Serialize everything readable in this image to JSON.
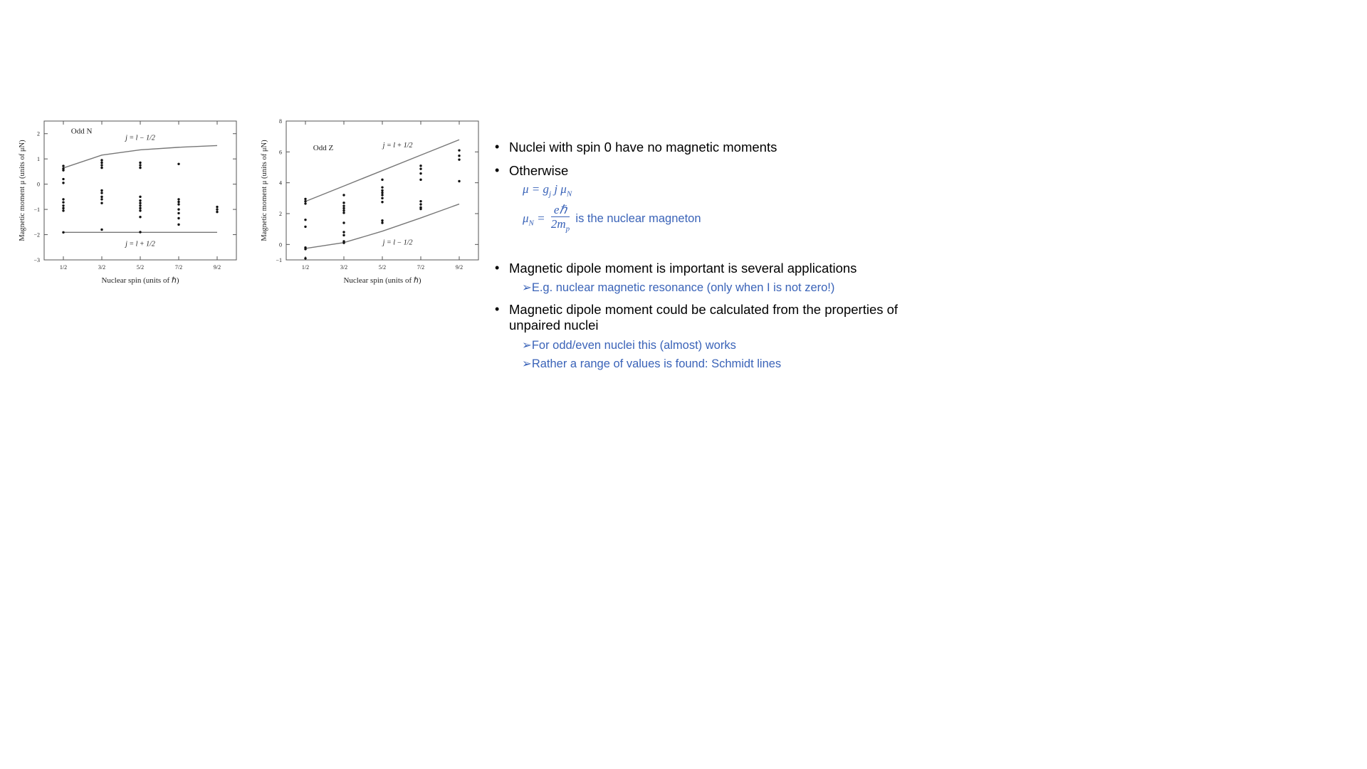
{
  "chart_data": [
    {
      "type": "scatter",
      "title": "",
      "xlabel": "Nuclear spin (units of ℏ)",
      "ylabel": "Magnetic moment μ (units of μN)",
      "inset_label": "Odd N",
      "x_ticks": [
        "1/2",
        "3/2",
        "5/2",
        "7/2",
        "9/2"
      ],
      "y_ticks": [
        -3,
        -2,
        -1,
        0,
        1,
        2
      ],
      "xlim": [
        0,
        5
      ],
      "ylim": [
        -3,
        2.5
      ],
      "lines": [
        {
          "name": "j = l − 1/2",
          "x": [
            0.5,
            1.5,
            2.5,
            3.5,
            4.5
          ],
          "y": [
            0.64,
            1.15,
            1.36,
            1.46,
            1.53
          ]
        },
        {
          "name": "j = l + 1/2",
          "x": [
            0.5,
            4.5
          ],
          "y": [
            -1.91,
            -1.91
          ]
        }
      ],
      "points": [
        [
          0.5,
          0.72
        ],
        [
          0.5,
          0.62
        ],
        [
          0.5,
          0.55
        ],
        [
          0.5,
          0.2
        ],
        [
          0.5,
          0.05
        ],
        [
          0.5,
          -0.6
        ],
        [
          0.5,
          -0.72
        ],
        [
          0.5,
          -0.85
        ],
        [
          0.5,
          -0.95
        ],
        [
          0.5,
          -1.05
        ],
        [
          0.5,
          -1.91
        ],
        [
          1.5,
          0.95
        ],
        [
          1.5,
          0.85
        ],
        [
          1.5,
          0.75
        ],
        [
          1.5,
          0.65
        ],
        [
          1.5,
          -0.25
        ],
        [
          1.5,
          -0.35
        ],
        [
          1.5,
          -0.5
        ],
        [
          1.5,
          -0.6
        ],
        [
          1.5,
          -0.75
        ],
        [
          1.5,
          -1.8
        ],
        [
          2.5,
          0.85
        ],
        [
          2.5,
          0.75
        ],
        [
          2.5,
          0.65
        ],
        [
          2.5,
          -0.5
        ],
        [
          2.5,
          -0.65
        ],
        [
          2.5,
          -0.75
        ],
        [
          2.5,
          -0.85
        ],
        [
          2.5,
          -0.95
        ],
        [
          2.5,
          -1.05
        ],
        [
          2.5,
          -1.3
        ],
        [
          2.5,
          -1.9
        ],
        [
          3.5,
          0.8
        ],
        [
          3.5,
          -0.6
        ],
        [
          3.5,
          -0.7
        ],
        [
          3.5,
          -0.8
        ],
        [
          3.5,
          -1.0
        ],
        [
          3.5,
          -1.15
        ],
        [
          3.5,
          -1.35
        ],
        [
          3.5,
          -1.6
        ],
        [
          4.5,
          -0.9
        ],
        [
          4.5,
          -1.0
        ],
        [
          4.5,
          -1.1
        ]
      ]
    },
    {
      "type": "scatter",
      "title": "",
      "xlabel": "Nuclear spin (units of ℏ)",
      "ylabel": "Magnetic moment μ (units of μN)",
      "inset_label": "Odd Z",
      "x_ticks": [
        "1/2",
        "3/2",
        "5/2",
        "7/2",
        "9/2"
      ],
      "y_ticks": [
        -1,
        0,
        2,
        4,
        6,
        8
      ],
      "xlim": [
        0,
        5
      ],
      "ylim": [
        -1,
        8
      ],
      "lines": [
        {
          "name": "j = l + 1/2",
          "x": [
            0.5,
            1.5,
            2.5,
            3.5,
            4.5
          ],
          "y": [
            2.79,
            3.79,
            4.79,
            5.79,
            6.79
          ]
        },
        {
          "name": "j = l − 1/2",
          "x": [
            0.5,
            1.5,
            2.5,
            3.5,
            4.5
          ],
          "y": [
            -0.26,
            0.12,
            0.86,
            1.72,
            2.62
          ]
        }
      ],
      "points": [
        [
          0.5,
          2.95
        ],
        [
          0.5,
          2.8
        ],
        [
          0.5,
          2.65
        ],
        [
          0.5,
          1.6
        ],
        [
          0.5,
          1.15
        ],
        [
          0.5,
          -0.2
        ],
        [
          0.5,
          -0.3
        ],
        [
          0.5,
          -0.9
        ],
        [
          1.5,
          3.2
        ],
        [
          1.5,
          2.7
        ],
        [
          1.5,
          2.5
        ],
        [
          1.5,
          2.35
        ],
        [
          1.5,
          2.2
        ],
        [
          1.5,
          2.05
        ],
        [
          1.5,
          1.4
        ],
        [
          1.5,
          0.8
        ],
        [
          1.5,
          0.6
        ],
        [
          1.5,
          0.2
        ],
        [
          1.5,
          0.1
        ],
        [
          2.5,
          4.2
        ],
        [
          2.5,
          3.7
        ],
        [
          2.5,
          3.5
        ],
        [
          2.5,
          3.35
        ],
        [
          2.5,
          3.2
        ],
        [
          2.5,
          3.0
        ],
        [
          2.5,
          2.75
        ],
        [
          2.5,
          1.55
        ],
        [
          2.5,
          1.4
        ],
        [
          3.5,
          5.1
        ],
        [
          3.5,
          4.9
        ],
        [
          3.5,
          4.6
        ],
        [
          3.5,
          4.2
        ],
        [
          3.5,
          2.8
        ],
        [
          3.5,
          2.6
        ],
        [
          3.5,
          2.4
        ],
        [
          3.5,
          2.3
        ],
        [
          4.5,
          6.1
        ],
        [
          4.5,
          5.75
        ],
        [
          4.5,
          5.5
        ],
        [
          4.5,
          4.1
        ]
      ]
    }
  ],
  "bullets": [
    {
      "text": "Nuclei with spin 0 have no magnetic moments"
    },
    {
      "text": "Otherwise"
    },
    {
      "text": "Magnetic dipole moment is important is several applications"
    },
    {
      "text": "Magnetic dipole moment could be calculated from the properties of unpaired nuclei"
    }
  ],
  "equations": {
    "mu": "μ = g",
    "mu_sub": "j",
    "mu_rest": "j μ",
    "mu_rest_sub": "N",
    "muN_lhs": "μ",
    "muN_lhs_sub": "N",
    "muN_eq": "=",
    "numerator": "eℏ",
    "denominator": "2m",
    "denominator_sub": "p",
    "muN_text": "is the nuclear magneton"
  },
  "subpoints": [
    "➢E.g. nuclear magnetic resonance (only when I is not zero!)",
    "➢For odd/even nuclei this (almost) works",
    "➢Rather a range of values is found: Schmidt lines"
  ],
  "colors": {
    "accent": "#3a63b8",
    "line": "#777777",
    "dot": "#111111"
  }
}
